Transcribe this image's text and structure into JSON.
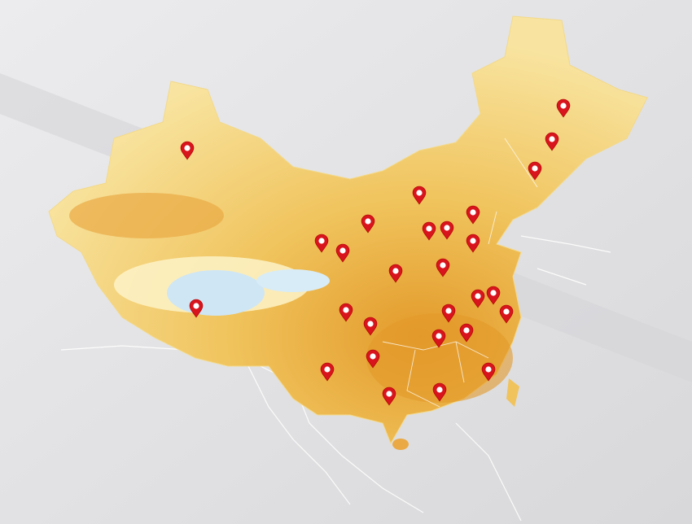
{
  "map": {
    "subject": "China",
    "colors": {
      "background": "#e4e4e6",
      "land_low": "#e39a2a",
      "land_mid": "#f0c35c",
      "land_high": "#f8e7a6",
      "plateau": "#cfe6f5",
      "border_lines": "#ffffff",
      "marker": "#d8141c"
    },
    "marker_icon": "map-pin-icon",
    "marker_count": 28
  }
}
